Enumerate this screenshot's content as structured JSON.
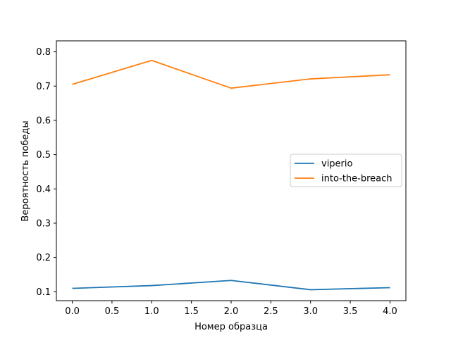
{
  "chart_data": {
    "type": "line",
    "title": "",
    "xlabel": "Номер образца",
    "ylabel": "Вероятность победы",
    "x": [
      0,
      1,
      2,
      3,
      4
    ],
    "xlim": [
      -0.2,
      4.2
    ],
    "ylim": [
      0.074,
      0.832
    ],
    "xticks": [
      0.0,
      0.5,
      1.0,
      1.5,
      2.0,
      2.5,
      3.0,
      3.5,
      4.0
    ],
    "xtick_labels": [
      "0.0",
      "0.5",
      "1.0",
      "1.5",
      "2.0",
      "2.5",
      "3.0",
      "3.5",
      "4.0"
    ],
    "yticks": [
      0.1,
      0.2,
      0.3,
      0.4,
      0.5,
      0.6,
      0.7,
      0.8
    ],
    "ytick_labels": [
      "0.1",
      "0.2",
      "0.3",
      "0.4",
      "0.5",
      "0.6",
      "0.7",
      "0.8"
    ],
    "grid": false,
    "legend_position": "center-right",
    "series": [
      {
        "name": "viperio",
        "color": "#1f77b4",
        "values": [
          0.11,
          0.118,
          0.133,
          0.106,
          0.112
        ]
      },
      {
        "name": "into-the-breach",
        "color": "#ff7f0e",
        "values": [
          0.705,
          0.775,
          0.694,
          0.721,
          0.733
        ]
      }
    ]
  }
}
